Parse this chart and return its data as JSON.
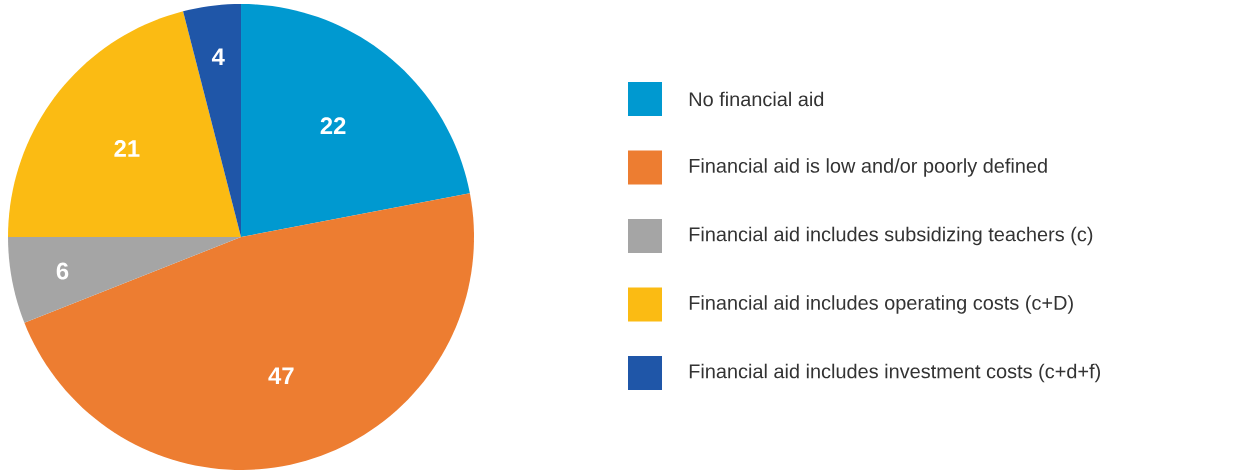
{
  "chart_data": {
    "type": "pie",
    "categories": [
      "No financial aid",
      "Financial aid is low and/or poorly defined",
      "Financial aid includes subsidizing teachers (c)",
      "Financial aid includes operating costs (c+D)",
      "Financial aid includes investment costs (c+d+f)"
    ],
    "values": [
      22,
      47,
      6,
      21,
      4
    ],
    "colors": [
      "#0099d0",
      "#ed7d31",
      "#a5a5a5",
      "#fbbb13",
      "#1f56a8"
    ],
    "data_labels": true,
    "legend": "right"
  }
}
